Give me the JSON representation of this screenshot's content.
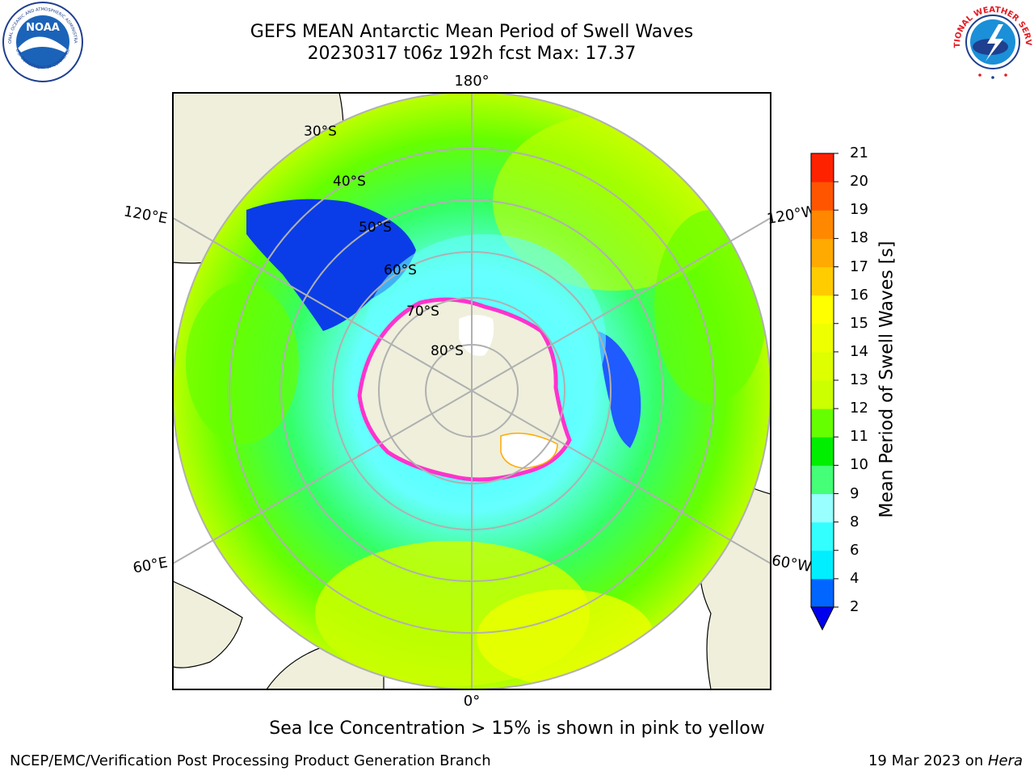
{
  "header": {
    "title_line1": "GEFS MEAN Antarctic Mean Period of Swell Waves",
    "title_line2": "20230317 t06z 192h fcst   Max: 17.37"
  },
  "logos": {
    "left": "noaa-logo",
    "left_text": "NOAA",
    "right": "nws-logo",
    "left_ring_text": "NATIONAL OCEANIC AND ATMOSPHERIC ADMINISTRATION",
    "left_ring_bottom": "U.S. DEPARTMENT OF COMMERCE",
    "right_ring_text": "NATIONAL WEATHER SERVICE"
  },
  "map": {
    "projection": "south-polar-stereographic",
    "longitude_labels": {
      "top": "180°",
      "bottom": "0°",
      "left_upper": "120°E",
      "right_upper": "120°W",
      "left_lower": "60°E",
      "right_lower": "60°W"
    },
    "latitude_labels": [
      "30°S",
      "40°S",
      "50°S",
      "60°S",
      "70°S",
      "80°S"
    ],
    "colors": {
      "land": "#efefdc",
      "ice_edge": "#ff33cc",
      "ice_interior": "#ffffff",
      "grid": "#b0b0b0"
    }
  },
  "colorbar": {
    "title": "Mean Period of Swell Waves [s]",
    "levels": [
      2,
      4,
      6,
      8,
      9,
      10,
      11,
      12,
      13,
      14,
      15,
      16,
      17,
      18,
      19,
      20,
      21
    ],
    "labels": [
      "2",
      "4",
      "6",
      "8",
      "9",
      "10",
      "11",
      "12",
      "13",
      "14",
      "15",
      "16",
      "17",
      "18",
      "19",
      "20",
      "21"
    ],
    "colors": [
      "#0066ff",
      "#00eeff",
      "#33ffff",
      "#99ffff",
      "#44ff77",
      "#00ee00",
      "#66ff00",
      "#ccff00",
      "#ddff00",
      "#eeff00",
      "#ffff00",
      "#ffcc00",
      "#ffaa00",
      "#ff8800",
      "#ff5500",
      "#ff2200"
    ],
    "under_color": "#0000ee"
  },
  "footer": {
    "note": "Sea Ice Concentration > 15% is shown in pink to yellow",
    "left": "NCEP/EMC/Verification Post Processing Product Generation Branch",
    "right_date": "19 Mar 2023 on ",
    "right_host": "Hera"
  }
}
